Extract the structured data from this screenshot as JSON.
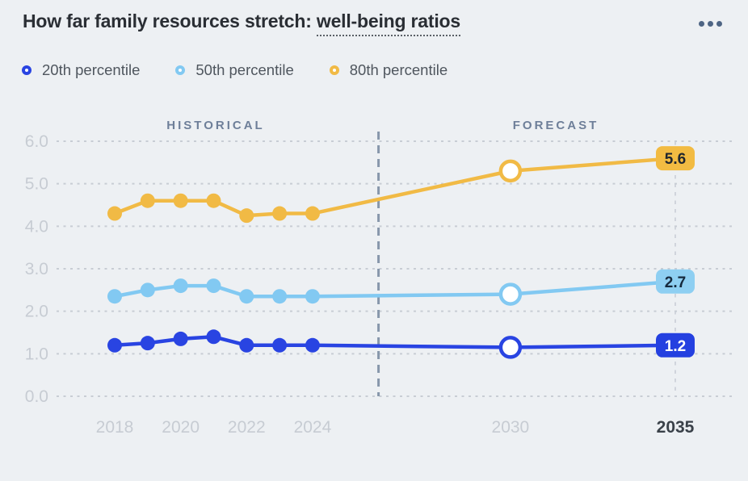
{
  "header": {
    "title_prefix": "How far family resources stretch: ",
    "title_highlight": "well-being ratios",
    "menu_icon": "ellipsis-icon"
  },
  "legend": {
    "items": [
      {
        "label": "20th percentile",
        "color": "#2944e2"
      },
      {
        "label": "50th percentile",
        "color": "#82c9f2"
      },
      {
        "label": "80th percentile",
        "color": "#f1ba45"
      }
    ]
  },
  "chart_data": {
    "type": "line",
    "title": "How far family resources stretch: well-being ratios",
    "x": [
      2018,
      2019,
      2020,
      2021,
      2022,
      2023,
      2024,
      2030,
      2035
    ],
    "series": [
      {
        "name": "20th percentile",
        "color": "#2944e2",
        "values": [
          1.2,
          1.25,
          1.35,
          1.4,
          1.2,
          1.2,
          1.2,
          1.15,
          1.2
        ],
        "end_label": "1.2",
        "badge_bg": "#2440e0",
        "badge_text_color": "#ffffff"
      },
      {
        "name": "50th percentile",
        "color": "#82c9f2",
        "values": [
          2.35,
          2.5,
          2.6,
          2.6,
          2.35,
          2.35,
          2.35,
          2.4,
          2.7
        ],
        "end_label": "2.7",
        "badge_bg": "#8ecff2",
        "badge_text_color": "#15293d"
      },
      {
        "name": "80th percentile",
        "color": "#f1ba45",
        "values": [
          4.3,
          4.6,
          4.6,
          4.6,
          4.25,
          4.3,
          4.3,
          5.3,
          5.6
        ],
        "end_label": "5.6",
        "badge_bg": "#f2bb42",
        "badge_text_color": "#20262e"
      }
    ],
    "historical_label": "HISTORICAL",
    "forecast_label": "FORECAST",
    "historical_through": 2024,
    "open_marker_x": 2030,
    "divider_x": 2026,
    "xlim": [
      2018,
      2035
    ],
    "ylim": [
      0,
      6
    ],
    "y_ticks": [
      {
        "value": 6,
        "label": "6.0"
      },
      {
        "value": 5,
        "label": "5.0"
      },
      {
        "value": 4,
        "label": "4.0"
      },
      {
        "value": 3,
        "label": "3.0"
      },
      {
        "value": 2,
        "label": "2.0"
      },
      {
        "value": 1,
        "label": "1.0"
      },
      {
        "value": 0,
        "label": "0.0"
      }
    ],
    "x_ticks": [
      {
        "value": 2018,
        "label": "2018"
      },
      {
        "value": 2020,
        "label": "2020"
      },
      {
        "value": 2022,
        "label": "2022"
      },
      {
        "value": 2024,
        "label": "2024"
      },
      {
        "value": 2030,
        "label": "2030"
      },
      {
        "value": 2035,
        "label": "2035",
        "emphasis": true
      }
    ],
    "grid": "dotted-horizontal",
    "legend_position": "top"
  }
}
